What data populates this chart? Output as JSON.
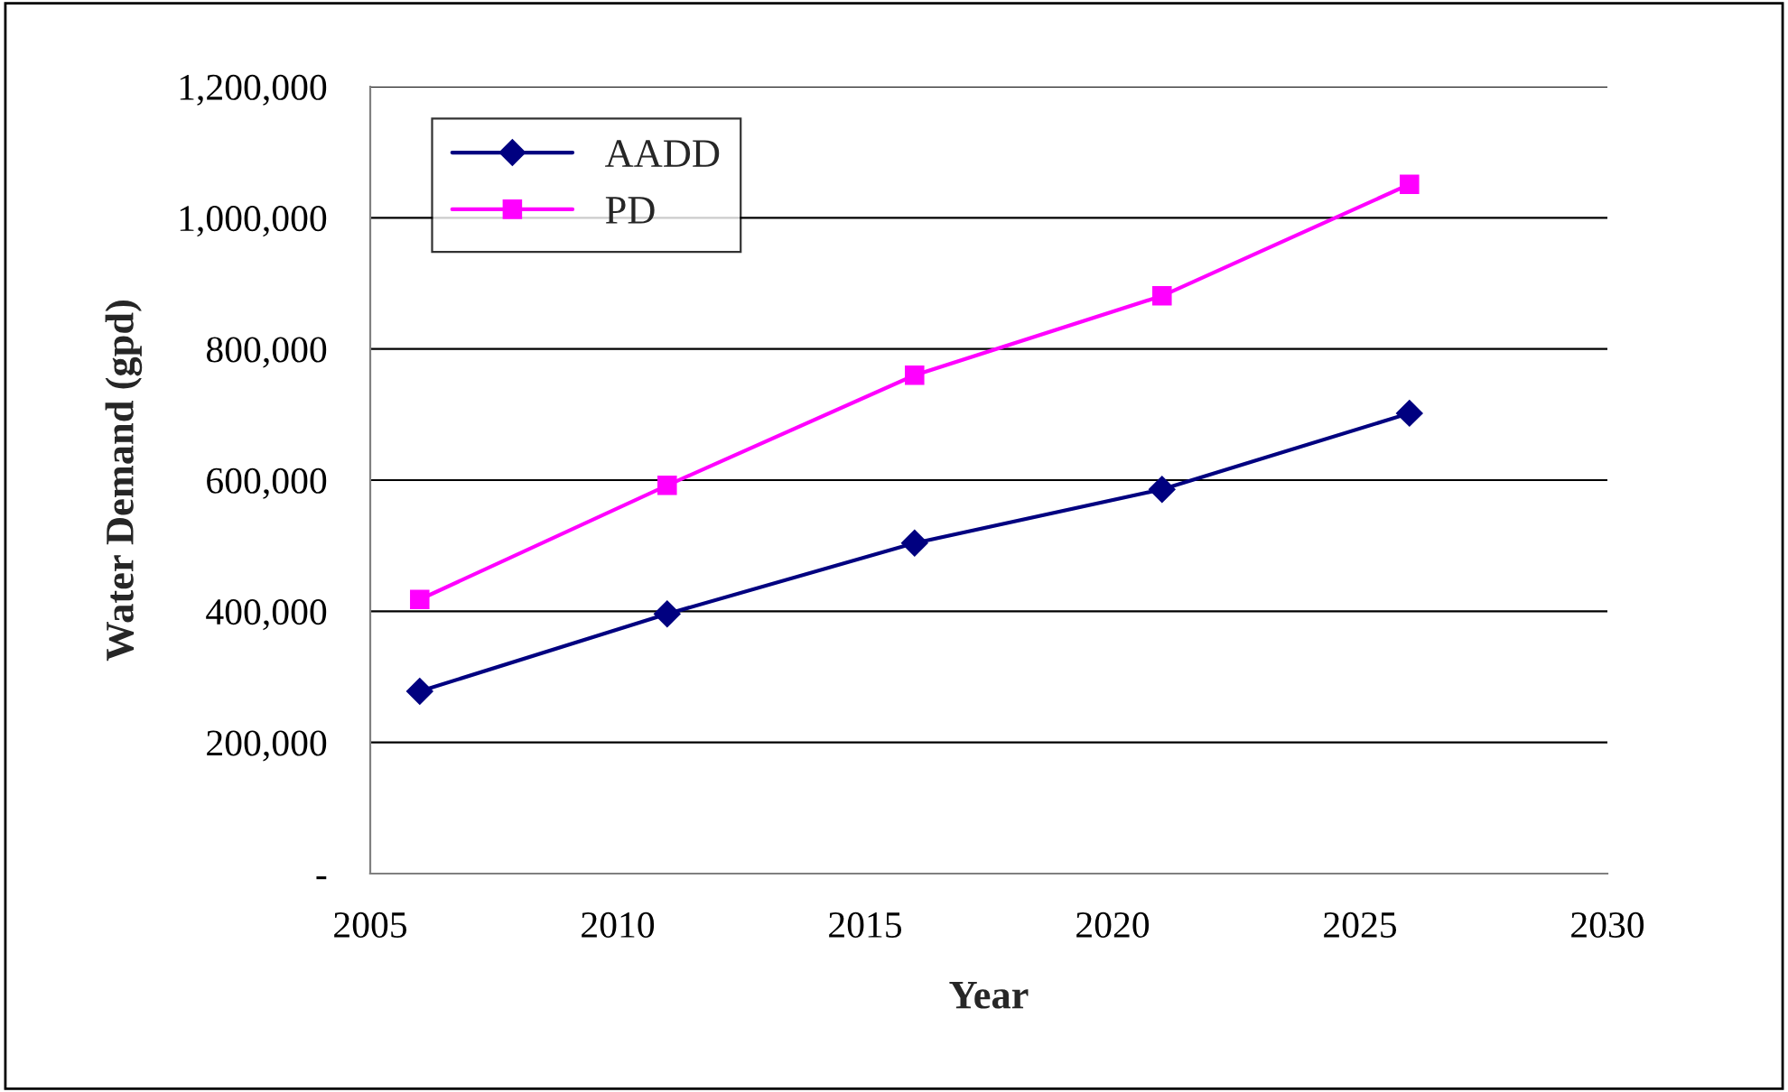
{
  "chart_data": {
    "type": "line",
    "xlabel": "Year",
    "ylabel": "Water Demand (gpd)",
    "x": [
      2006,
      2011,
      2016,
      2021,
      2026
    ],
    "series": [
      {
        "name": "AADD",
        "color": "#000080",
        "marker": "diamond",
        "values": [
          278000,
          396000,
          504000,
          586000,
          702000
        ]
      },
      {
        "name": "PD",
        "color": "#ff00ff",
        "marker": "square",
        "values": [
          418000,
          592000,
          760000,
          881000,
          1051000
        ]
      }
    ],
    "xlim": [
      2005,
      2030
    ],
    "xticks": [
      2005,
      2010,
      2015,
      2020,
      2025,
      2030
    ],
    "ylim": [
      0,
      1200000
    ],
    "yticks": [
      {
        "value": 0,
        "label": "-"
      },
      {
        "value": 200000,
        "label": "200,000"
      },
      {
        "value": 400000,
        "label": "400,000"
      },
      {
        "value": 600000,
        "label": "600,000"
      },
      {
        "value": 800000,
        "label": "800,000"
      },
      {
        "value": 1000000,
        "label": "1,000,000"
      },
      {
        "value": 1200000,
        "label": "1,200,000"
      }
    ],
    "grid": "y",
    "legend": "top left",
    "line_style": "solid"
  }
}
